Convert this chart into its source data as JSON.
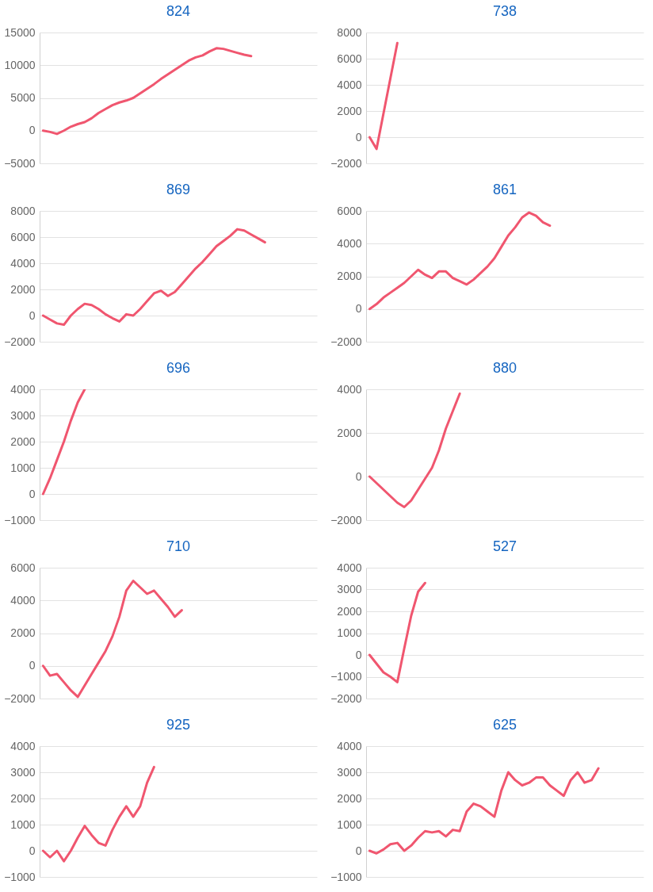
{
  "chart_data": [
    {
      "type": "line",
      "title": "824",
      "categories": [
        null,
        null,
        null,
        null,
        null,
        null,
        null,
        null,
        null,
        null,
        null,
        null,
        null,
        null,
        null,
        null,
        null,
        null,
        null,
        null,
        null,
        null,
        null,
        null,
        null,
        null,
        null,
        null,
        null,
        null,
        null,
        null,
        null,
        null,
        null,
        null,
        null,
        null,
        null,
        null
      ],
      "ylim": [
        -5000,
        15000
      ],
      "yticks": [
        -5000,
        0,
        5000,
        10000,
        15000
      ],
      "grid": "y",
      "tick_labels": "y",
      "series": [
        {
          "color": "#f0566f",
          "values": [
            0,
            -200,
            -500,
            0,
            600,
            1000,
            1300,
            1900,
            2700,
            3300,
            3900,
            4300,
            4600,
            5000,
            5700,
            6400,
            7100,
            7900,
            8600,
            9300,
            10000,
            10700,
            11200,
            11500,
            12100,
            12600,
            12500,
            12200,
            11900,
            11600,
            11400,
            null,
            null,
            null,
            null,
            null,
            null,
            null,
            null,
            null
          ]
        }
      ]
    },
    {
      "type": "line",
      "title": "738",
      "categories": [
        null,
        null,
        null,
        null,
        null,
        null,
        null,
        null,
        null,
        null,
        null,
        null,
        null,
        null,
        null,
        null,
        null,
        null,
        null,
        null,
        null,
        null,
        null,
        null,
        null,
        null,
        null,
        null,
        null,
        null,
        null,
        null,
        null,
        null,
        null,
        null,
        null,
        null,
        null,
        null
      ],
      "ylim": [
        -2000,
        8000
      ],
      "yticks": [
        -2000,
        0,
        2000,
        4000,
        6000,
        8000
      ],
      "grid": "y",
      "tick_labels": "y",
      "series": [
        {
          "color": "#f0566f",
          "values": [
            0,
            -900,
            1800,
            4500,
            7200,
            null,
            null,
            null,
            null,
            null,
            null,
            null,
            null,
            null,
            null,
            null,
            null,
            null,
            null,
            null,
            null,
            null,
            null,
            null,
            null,
            null,
            null,
            null,
            null,
            null,
            null,
            null,
            null,
            null,
            null,
            null,
            null,
            null,
            null,
            null
          ]
        }
      ]
    },
    {
      "type": "line",
      "title": "869",
      "categories": [
        null,
        null,
        null,
        null,
        null,
        null,
        null,
        null,
        null,
        null,
        null,
        null,
        null,
        null,
        null,
        null,
        null,
        null,
        null,
        null,
        null,
        null,
        null,
        null,
        null,
        null,
        null,
        null,
        null,
        null,
        null,
        null,
        null,
        null,
        null,
        null,
        null,
        null,
        null,
        null
      ],
      "ylim": [
        -2000,
        8000
      ],
      "yticks": [
        -2000,
        0,
        2000,
        4000,
        6000,
        8000
      ],
      "grid": "y",
      "tick_labels": "y",
      "series": [
        {
          "color": "#f0566f",
          "values": [
            0,
            -300,
            -600,
            -700,
            0,
            500,
            900,
            800,
            500,
            100,
            -200,
            -450,
            100,
            0,
            500,
            1100,
            1700,
            1900,
            1500,
            1800,
            2400,
            3000,
            3600,
            4100,
            4700,
            5300,
            5700,
            6100,
            6600,
            6500,
            6200,
            5900,
            5600,
            null,
            null,
            null,
            null,
            null,
            null,
            null
          ]
        }
      ]
    },
    {
      "type": "line",
      "title": "861",
      "categories": [
        null,
        null,
        null,
        null,
        null,
        null,
        null,
        null,
        null,
        null,
        null,
        null,
        null,
        null,
        null,
        null,
        null,
        null,
        null,
        null,
        null,
        null,
        null,
        null,
        null,
        null,
        null,
        null,
        null,
        null,
        null,
        null,
        null,
        null,
        null,
        null,
        null,
        null,
        null,
        null
      ],
      "ylim": [
        -2000,
        6000
      ],
      "yticks": [
        -2000,
        0,
        2000,
        4000,
        6000
      ],
      "grid": "y",
      "tick_labels": "y",
      "series": [
        {
          "color": "#f0566f",
          "values": [
            0,
            300,
            700,
            1000,
            1300,
            1600,
            2000,
            2400,
            2100,
            1900,
            2300,
            2300,
            1900,
            1700,
            1500,
            1800,
            2200,
            2600,
            3100,
            3800,
            4500,
            5000,
            5600,
            5900,
            5700,
            5300,
            5100,
            null,
            null,
            null,
            null,
            null,
            null,
            null,
            null,
            null,
            null,
            null,
            null,
            null
          ]
        }
      ]
    },
    {
      "type": "line",
      "title": "696",
      "categories": [
        null,
        null,
        null,
        null,
        null,
        null,
        null,
        null,
        null,
        null,
        null,
        null,
        null,
        null,
        null,
        null,
        null,
        null,
        null,
        null,
        null,
        null,
        null,
        null,
        null,
        null,
        null,
        null,
        null,
        null,
        null,
        null,
        null,
        null,
        null,
        null,
        null,
        null,
        null,
        null
      ],
      "ylim": [
        -1000,
        4000
      ],
      "yticks": [
        -1000,
        0,
        1000,
        2000,
        3000,
        4000
      ],
      "grid": "y",
      "tick_labels": "y",
      "series": [
        {
          "color": "#f0566f",
          "values": [
            0,
            600,
            1300,
            2000,
            2800,
            3500,
            4000,
            null,
            null,
            null,
            null,
            null,
            null,
            null,
            null,
            null,
            null,
            null,
            null,
            null,
            null,
            null,
            null,
            null,
            null,
            null,
            null,
            null,
            null,
            null,
            null,
            null,
            null,
            null,
            null,
            null,
            null,
            null,
            null,
            null
          ]
        }
      ]
    },
    {
      "type": "line",
      "title": "880",
      "categories": [
        null,
        null,
        null,
        null,
        null,
        null,
        null,
        null,
        null,
        null,
        null,
        null,
        null,
        null,
        null,
        null,
        null,
        null,
        null,
        null,
        null,
        null,
        null,
        null,
        null,
        null,
        null,
        null,
        null,
        null,
        null,
        null,
        null,
        null,
        null,
        null,
        null,
        null,
        null,
        null
      ],
      "ylim": [
        -2000,
        4000
      ],
      "yticks": [
        -2000,
        0,
        2000,
        4000
      ],
      "grid": "y",
      "tick_labels": "y",
      "series": [
        {
          "color": "#f0566f",
          "values": [
            0,
            -300,
            -600,
            -900,
            -1200,
            -1400,
            -1100,
            -600,
            -100,
            400,
            1200,
            2200,
            3000,
            3800,
            null,
            null,
            null,
            null,
            null,
            null,
            null,
            null,
            null,
            null,
            null,
            null,
            null,
            null,
            null,
            null,
            null,
            null,
            null,
            null,
            null,
            null,
            null,
            null,
            null,
            null
          ]
        }
      ]
    },
    {
      "type": "line",
      "title": "710",
      "categories": [
        null,
        null,
        null,
        null,
        null,
        null,
        null,
        null,
        null,
        null,
        null,
        null,
        null,
        null,
        null,
        null,
        null,
        null,
        null,
        null,
        null,
        null,
        null,
        null,
        null,
        null,
        null,
        null,
        null,
        null,
        null,
        null,
        null,
        null,
        null,
        null,
        null,
        null,
        null,
        null
      ],
      "ylim": [
        -2000,
        6000
      ],
      "yticks": [
        -2000,
        0,
        2000,
        4000,
        6000
      ],
      "grid": "y",
      "tick_labels": "y",
      "series": [
        {
          "color": "#f0566f",
          "values": [
            0,
            -600,
            -500,
            -1000,
            -1500,
            -1900,
            -1200,
            -500,
            200,
            900,
            1800,
            3000,
            4600,
            5200,
            4800,
            4400,
            4600,
            4100,
            3600,
            3000,
            3400,
            null,
            null,
            null,
            null,
            null,
            null,
            null,
            null,
            null,
            null,
            null,
            null,
            null,
            null,
            null,
            null,
            null,
            null,
            null
          ]
        }
      ]
    },
    {
      "type": "line",
      "title": "527",
      "categories": [
        null,
        null,
        null,
        null,
        null,
        null,
        null,
        null,
        null,
        null,
        null,
        null,
        null,
        null,
        null,
        null,
        null,
        null,
        null,
        null,
        null,
        null,
        null,
        null,
        null,
        null,
        null,
        null,
        null,
        null,
        null,
        null,
        null,
        null,
        null,
        null,
        null,
        null,
        null,
        null
      ],
      "ylim": [
        -2000,
        4000
      ],
      "yticks": [
        -2000,
        -1000,
        0,
        1000,
        2000,
        3000,
        4000
      ],
      "grid": "y",
      "tick_labels": "y",
      "series": [
        {
          "color": "#f0566f",
          "values": [
            0,
            -400,
            -800,
            -1000,
            -1250,
            300,
            1800,
            2900,
            3300,
            null,
            null,
            null,
            null,
            null,
            null,
            null,
            null,
            null,
            null,
            null,
            null,
            null,
            null,
            null,
            null,
            null,
            null,
            null,
            null,
            null,
            null,
            null,
            null,
            null,
            null,
            null,
            null,
            null,
            null,
            null
          ]
        }
      ]
    },
    {
      "type": "line",
      "title": "925",
      "categories": [
        null,
        null,
        null,
        null,
        null,
        null,
        null,
        null,
        null,
        null,
        null,
        null,
        null,
        null,
        null,
        null,
        null,
        null,
        null,
        null,
        null,
        null,
        null,
        null,
        null,
        null,
        null,
        null,
        null,
        null,
        null,
        null,
        null,
        null,
        null,
        null,
        null,
        null,
        null,
        null
      ],
      "ylim": [
        -1000,
        4000
      ],
      "yticks": [
        -1000,
        0,
        1000,
        2000,
        3000,
        4000
      ],
      "grid": "y",
      "tick_labels": "y",
      "series": [
        {
          "color": "#f0566f",
          "values": [
            0,
            -250,
            0,
            -400,
            0,
            500,
            950,
            600,
            300,
            200,
            800,
            1300,
            1700,
            1300,
            1700,
            2600,
            3200,
            null,
            null,
            null,
            null,
            null,
            null,
            null,
            null,
            null,
            null,
            null,
            null,
            null,
            null,
            null,
            null,
            null,
            null,
            null,
            null,
            null,
            null,
            null
          ]
        }
      ]
    },
    {
      "type": "line",
      "title": "625",
      "categories": [
        null,
        null,
        null,
        null,
        null,
        null,
        null,
        null,
        null,
        null,
        null,
        null,
        null,
        null,
        null,
        null,
        null,
        null,
        null,
        null,
        null,
        null,
        null,
        null,
        null,
        null,
        null,
        null,
        null,
        null,
        null,
        null,
        null,
        null,
        null,
        null,
        null,
        null,
        null,
        null
      ],
      "ylim": [
        -1000,
        4000
      ],
      "yticks": [
        -1000,
        0,
        1000,
        2000,
        3000,
        4000
      ],
      "grid": "y",
      "tick_labels": "y",
      "series": [
        {
          "color": "#f0566f",
          "values": [
            0,
            -100,
            50,
            250,
            300,
            0,
            200,
            500,
            750,
            700,
            750,
            550,
            800,
            750,
            1500,
            1800,
            1700,
            1500,
            1300,
            2300,
            3000,
            2700,
            2500,
            2600,
            2800,
            2800,
            2500,
            2300,
            2100,
            2700,
            3000,
            2600,
            2700,
            3150,
            null,
            null,
            null,
            null,
            null,
            null
          ]
        }
      ]
    }
  ]
}
